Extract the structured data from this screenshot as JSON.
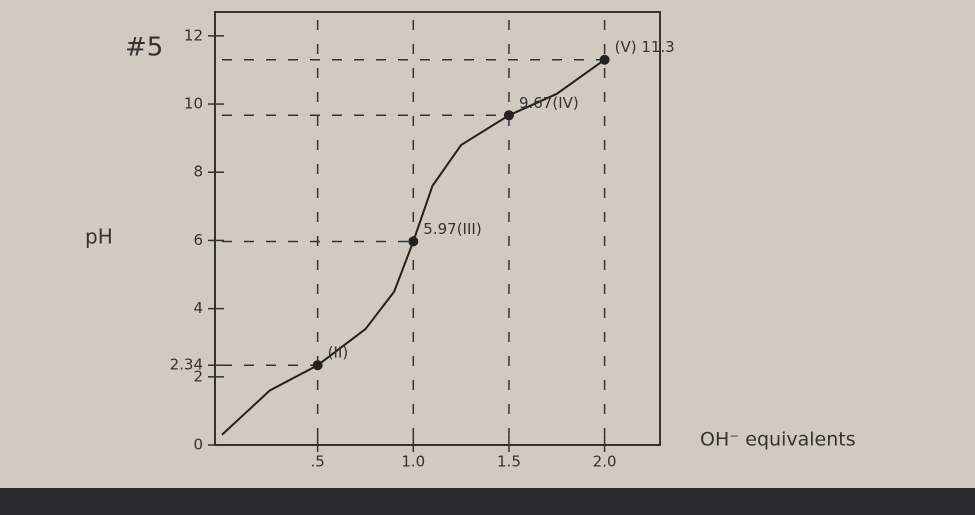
{
  "chart_data": {
    "type": "line",
    "title": "#5",
    "ylabel": "pH",
    "xlabel": "OH⁻ equivalents",
    "x": [
      0,
      0.25,
      0.5,
      0.75,
      0.9,
      1.0,
      1.1,
      1.25,
      1.5,
      1.75,
      2.0
    ],
    "values": [
      0.3,
      1.6,
      2.34,
      3.4,
      4.5,
      5.97,
      7.6,
      8.8,
      9.67,
      10.3,
      11.3
    ],
    "value_labels": [
      null,
      null,
      "(II)",
      null,
      null,
      "5.97(III)",
      null,
      null,
      "9.67(IV)",
      null,
      "(V) 11.3"
    ],
    "color": "#222222",
    "xlim": [
      0,
      2.3
    ],
    "ylim": [
      0,
      12.7
    ],
    "xticks": [
      {
        "value": 0.5,
        "label": ".5"
      },
      {
        "value": 1.0,
        "label": "1.0"
      },
      {
        "value": 1.5,
        "label": "1.5"
      },
      {
        "value": 2.0,
        "label": "2.0"
      }
    ],
    "yticks": [
      0,
      2,
      2.34,
      4,
      6,
      8,
      10,
      12
    ]
  }
}
